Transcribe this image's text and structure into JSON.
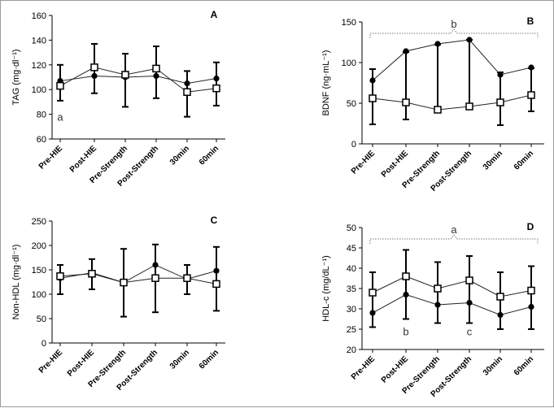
{
  "chart_data": [
    {
      "panel": "A",
      "type": "line",
      "ylabel": "TAG (mg·dl⁻¹)",
      "ylim": [
        60,
        160
      ],
      "yticks": [
        60,
        80,
        100,
        120,
        140,
        160
      ],
      "categories": [
        "Pre-HIE",
        "Post-HIE",
        "Pre-Strength",
        "Post-Strength",
        "30min",
        "60min"
      ],
      "series": [
        {
          "marker": "circle",
          "values": [
            107,
            111,
            110,
            111,
            105,
            109
          ],
          "err_lo": [
            91,
            97,
            86,
            93,
            78,
            87
          ],
          "err_hi": [
            120,
            137,
            129,
            135,
            115,
            122
          ]
        },
        {
          "marker": "square",
          "values": [
            103,
            118,
            112,
            117,
            98,
            101
          ],
          "err_lo": [
            91,
            97,
            86,
            93,
            78,
            87
          ],
          "err_hi": [
            120,
            137,
            129,
            135,
            115,
            122
          ]
        }
      ],
      "annotations": [
        {
          "text": "a",
          "category_index": 0,
          "y": 78
        }
      ]
    },
    {
      "panel": "B",
      "type": "line",
      "ylabel": "BDNF (ng·mL⁻¹)",
      "ylim": [
        0,
        150
      ],
      "yticks": [
        0,
        50,
        100,
        150
      ],
      "categories": [
        "Pre-HIE",
        "Post-HIE",
        "Pre-Strength",
        "Post-Strength",
        "30min",
        "60min"
      ],
      "series": [
        {
          "marker": "circle",
          "values": [
            78,
            114,
            123,
            128,
            85,
            94
          ],
          "err_lo": [
            24,
            30,
            42,
            46,
            23,
            40
          ],
          "err_hi": [
            92,
            113,
            122,
            128,
            88,
            93
          ]
        },
        {
          "marker": "square",
          "values": [
            56,
            51,
            42,
            46,
            51,
            60
          ],
          "err_lo": [
            24,
            30,
            42,
            46,
            23,
            40
          ],
          "err_hi": [
            92,
            84,
            65,
            84,
            85,
            93
          ]
        }
      ],
      "annotations": [
        {
          "text": "b",
          "bracket": "all"
        }
      ]
    },
    {
      "panel": "C",
      "type": "line",
      "ylabel": "Non-HDL (mg·dl⁻¹)",
      "ylim": [
        0,
        250
      ],
      "yticks": [
        0,
        50,
        100,
        150,
        200,
        250
      ],
      "categories": [
        "Pre-HIE",
        "Post-HIE",
        "Pre-Strength",
        "Post-Strength",
        "30min",
        "60min"
      ],
      "series": [
        {
          "marker": "circle",
          "values": [
            133,
            144,
            124,
            160,
            131,
            148
          ],
          "err_lo": [
            100,
            110,
            54,
            63,
            100,
            66
          ],
          "err_hi": [
            160,
            172,
            193,
            202,
            160,
            197
          ]
        },
        {
          "marker": "square",
          "values": [
            137,
            142,
            124,
            133,
            133,
            121
          ],
          "err_lo": [
            103,
            110,
            56,
            63,
            100,
            66
          ],
          "err_hi": [
            160,
            172,
            193,
            202,
            160,
            197
          ]
        }
      ],
      "annotations": []
    },
    {
      "panel": "D",
      "type": "line",
      "ylabel": "HDL-c (mg/dL⁻¹)",
      "ylim": [
        20,
        50
      ],
      "yticks": [
        20,
        25,
        30,
        35,
        40,
        45,
        50
      ],
      "categories": [
        "Pre-HIE",
        "Post-HIE",
        "Pre-Strength",
        "Post-Strength",
        "30min",
        "60min"
      ],
      "series": [
        {
          "marker": "circle",
          "values": [
            29,
            33.5,
            31,
            31.5,
            28.5,
            30.5
          ],
          "err_lo": [
            25.5,
            27.5,
            26.5,
            26.5,
            25,
            25
          ],
          "err_hi": [
            39,
            44.5,
            41.5,
            43,
            39,
            40.5
          ]
        },
        {
          "marker": "square",
          "values": [
            34,
            38,
            35,
            37,
            33,
            34.5
          ],
          "err_lo": [
            25.5,
            27.5,
            26.5,
            26.5,
            25,
            25
          ],
          "err_hi": [
            39,
            44.5,
            41.5,
            43,
            39,
            40.5
          ]
        }
      ],
      "annotations": [
        {
          "text": "a",
          "bracket": "all"
        },
        {
          "text": "b",
          "category_index": 1,
          "y": 24.5
        },
        {
          "text": "c",
          "category_index": 3,
          "y": 24.5
        }
      ]
    }
  ]
}
